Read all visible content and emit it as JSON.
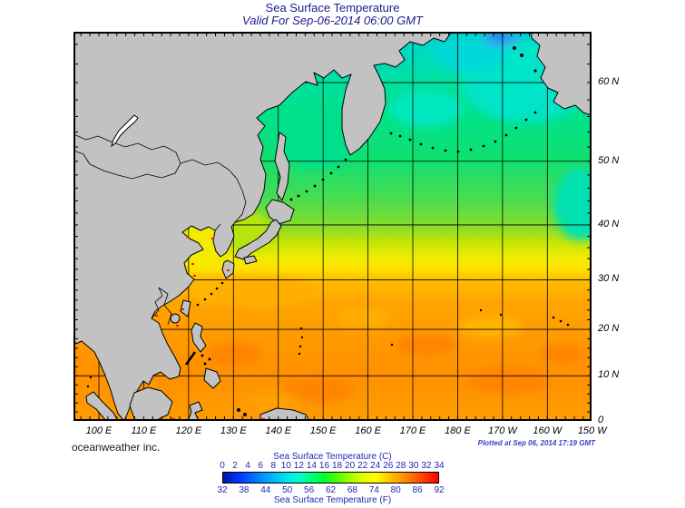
{
  "title": "Sea Surface Temperature",
  "subtitle": "Valid For Sep-06-2014 06:00 GMT",
  "credit": "oceanweather inc.",
  "plotted_at": "Plotted at Sep 06, 2014 17:19 GMT",
  "map": {
    "lat_ticks": [
      {
        "label": "60 N",
        "lat": 60
      },
      {
        "label": "50 N",
        "lat": 50
      },
      {
        "label": "40 N",
        "lat": 40
      },
      {
        "label": "30 N",
        "lat": 30
      },
      {
        "label": "20 N",
        "lat": 20
      },
      {
        "label": "10 N",
        "lat": 10
      },
      {
        "label": "0",
        "lat": 0
      }
    ],
    "lon_ticks": [
      {
        "label": "100 E",
        "lon": 100
      },
      {
        "label": "110 E",
        "lon": 110
      },
      {
        "label": "120 E",
        "lon": 120
      },
      {
        "label": "130 E",
        "lon": 130
      },
      {
        "label": "140 E",
        "lon": 140
      },
      {
        "label": "150 E",
        "lon": 150
      },
      {
        "label": "160 E",
        "lon": 160
      },
      {
        "label": "170 E",
        "lon": 170
      },
      {
        "label": "180 E",
        "lon": 180
      },
      {
        "label": "170 W",
        "lon": 190
      },
      {
        "label": "160 W",
        "lon": 200
      },
      {
        "label": "150 W",
        "lon": 210
      }
    ]
  },
  "colorbar": {
    "title_c": "Sea Surface Temperature (C)",
    "title_f": "Sea Surface Temperature (F)",
    "ticks_c": [
      "0",
      "2",
      "4",
      "6",
      "8",
      "10",
      "12",
      "14",
      "16",
      "18",
      "20",
      "22",
      "24",
      "26",
      "28",
      "30",
      "32",
      "34"
    ],
    "ticks_f": [
      "32",
      "38",
      "44",
      "50",
      "56",
      "62",
      "68",
      "74",
      "80",
      "86",
      "92"
    ],
    "gradient": [
      "#0014aa 0%",
      "#0038ff 8%",
      "#00a0ff 20%",
      "#00e0f0 29%",
      "#00ffd0 35%",
      "#00ff80 41%",
      "#00ff30 47%",
      "#50ff00 53%",
      "#a0ff00 59%",
      "#e0ff00 65%",
      "#ffff00 71%",
      "#ffd000 76%",
      "#ffa000 82%",
      "#ff7000 88%",
      "#ff3800 94%",
      "#ff0000 100%"
    ]
  },
  "colors": {
    "land": "#c2c2c2",
    "coast": "#000000",
    "title_text": "#1b1b8f",
    "colorbar_text": "#2424b8",
    "plotted_text": "#3c3ccc"
  }
}
